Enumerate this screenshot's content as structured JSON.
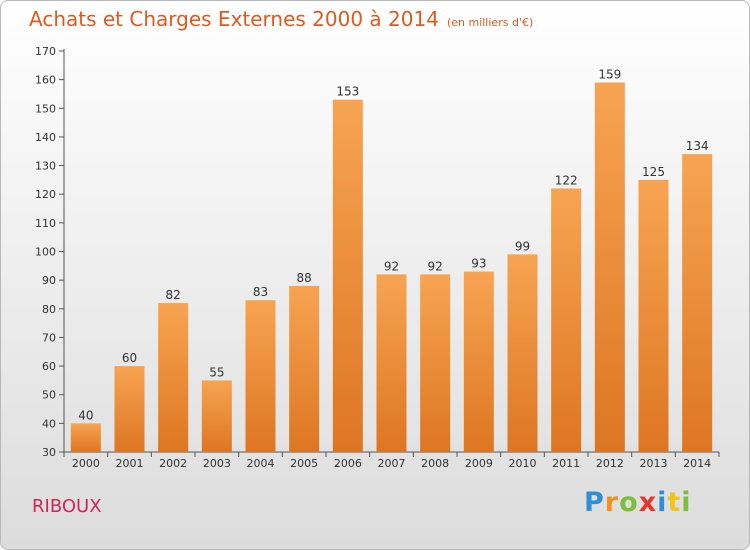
{
  "title": "Achats et Charges Externes 2000 à 2014",
  "subtitle": "(en milliers d'€)",
  "commune": "RIBOUX",
  "logo": {
    "letters": [
      "P",
      "r",
      "o",
      "x",
      "i",
      "t",
      "i"
    ],
    "colors": [
      "#2e8fd6",
      "#f0941f",
      "#7bbf3a",
      "#e8362f",
      "#2e8fd6",
      "#f0c419",
      "#7bbf3a"
    ]
  },
  "colors": {
    "bar_light": "#f7a452",
    "bar_dark": "#dd7622",
    "title": "#e05a1f",
    "commune": "#d0245a"
  },
  "chart_data": {
    "type": "bar",
    "categories": [
      "2000",
      "2001",
      "2002",
      "2003",
      "2004",
      "2005",
      "2006",
      "2007",
      "2008",
      "2009",
      "2010",
      "2011",
      "2012",
      "2013",
      "2014"
    ],
    "values": [
      40,
      60,
      82,
      55,
      83,
      88,
      153,
      92,
      92,
      93,
      99,
      122,
      159,
      125,
      134
    ],
    "ylim": [
      30,
      170
    ],
    "yticks": [
      30,
      40,
      50,
      60,
      70,
      80,
      90,
      100,
      110,
      120,
      130,
      140,
      150,
      160,
      170
    ],
    "grid": false,
    "data_labels": true
  }
}
